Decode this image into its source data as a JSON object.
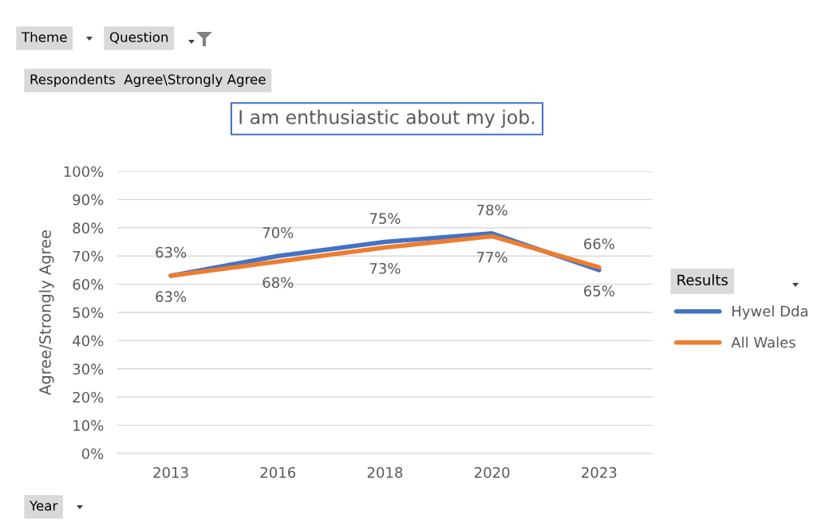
{
  "chart_data": {
    "type": "line",
    "title": "I am enthusiastic about my job.",
    "ylabel": "Agree/Strongly Agree",
    "legend_title": "Results",
    "categories": [
      "2013",
      "2016",
      "2018",
      "2020",
      "2023"
    ],
    "series": [
      {
        "name": "Hywel Dda",
        "color": "#4472c4",
        "values": [
          63,
          70,
          75,
          78,
          65
        ],
        "value_labels": [
          "63%",
          "70%",
          "75%",
          "78%",
          "65%"
        ]
      },
      {
        "name": "All Wales",
        "color": "#ed7d31",
        "values": [
          63,
          68,
          73,
          77,
          66
        ],
        "value_labels": [
          "63%",
          "68%",
          "73%",
          "77%",
          "66%"
        ]
      }
    ],
    "ylim": [
      0,
      100
    ],
    "yticks": [
      {
        "value": 0,
        "label": "0%"
      },
      {
        "value": 10,
        "label": "10%"
      },
      {
        "value": 20,
        "label": "20%"
      },
      {
        "value": 30,
        "label": "30%"
      },
      {
        "value": 40,
        "label": "40%"
      },
      {
        "value": 50,
        "label": "50%"
      },
      {
        "value": 60,
        "label": "60%"
      },
      {
        "value": 70,
        "label": "70%"
      },
      {
        "value": 80,
        "label": "80%"
      },
      {
        "value": 90,
        "label": "90%"
      },
      {
        "value": 100,
        "label": "100%"
      }
    ],
    "grid": "y",
    "legend": "right",
    "line_style": "solid",
    "marker": "none",
    "annotations": [
      "Theme",
      "Question",
      "Respondents  Agree\\Strongly Agree",
      "Year"
    ]
  }
}
